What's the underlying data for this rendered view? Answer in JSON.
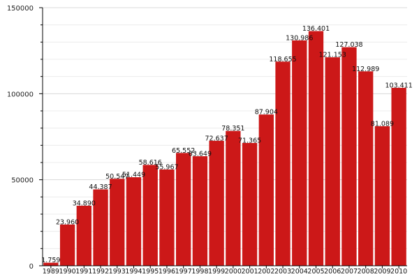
{
  "chart_data": {
    "type": "bar",
    "categories": [
      "1989",
      "1990",
      "1991",
      "1992",
      "1993",
      "1994",
      "1995",
      "1996",
      "1997",
      "1998",
      "1999",
      "2000",
      "2001",
      "2002",
      "2003",
      "2004",
      "2005",
      "2006",
      "2007",
      "2008",
      "2009",
      "2010"
    ],
    "values": [
      1759,
      23960,
      34890,
      44387,
      50547,
      51449,
      58616,
      55967,
      65552,
      63649,
      72637,
      78351,
      71365,
      87904,
      118655,
      130986,
      136401,
      121153,
      127038,
      112989,
      81089,
      103411
    ],
    "value_labels": [
      "1.759",
      "23.960",
      "34.890",
      "44.387",
      "50.547",
      "51.449",
      "58.616",
      "55.967",
      "65.552",
      "63.649",
      "72.637",
      "78.351",
      "71.365",
      "87.904",
      "118.655",
      "130.986",
      "136.401",
      "121.153",
      "127.038",
      "112.989",
      "81.089",
      "103.411"
    ],
    "title": "",
    "xlabel": "",
    "ylabel": "",
    "ylim": [
      0,
      150000
    ],
    "y_ticks": [
      0,
      50000,
      100000,
      150000
    ],
    "y_tick_labels": [
      "0",
      "50000",
      "100000",
      "150000"
    ],
    "grid": true,
    "legend": "none",
    "colors": {
      "bar": "#cc1818",
      "grid_major": "#d8d8d8",
      "grid_minor": "#ececec",
      "axis": "#000000"
    }
  }
}
